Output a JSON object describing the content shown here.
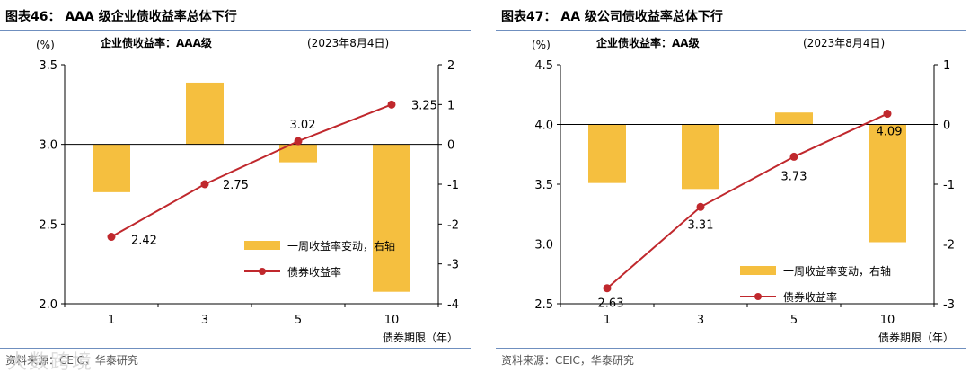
{
  "charts": [
    {
      "figure_title": "图表46：  AAA 级企业债收益率总体下行",
      "source": "资料来源：CEIC，华泰研究",
      "chart_data": {
        "type": "bar",
        "inner_title": "企业债收益率：AAA级",
        "date": "(2023年8月4日)",
        "left_unit": "(%)",
        "xlabel": "债券期限（年）",
        "categories": [
          "1",
          "3",
          "5",
          "10"
        ],
        "left_ylim": [
          2.0,
          3.5
        ],
        "left_ticks": [
          "2.0",
          "2.5",
          "3.0",
          "3.5"
        ],
        "right_ylim": [
          -4,
          2
        ],
        "right_ticks": [
          "-4",
          "-3",
          "-2",
          "-1",
          "0",
          "1",
          "2"
        ],
        "series": [
          {
            "name": "一周收益率变动，右轴",
            "axis": "right",
            "kind": "bar",
            "color": "#f5bf3f",
            "values": [
              -1.2,
              1.55,
              -0.45,
              -3.7
            ]
          },
          {
            "name": "债券收益率",
            "axis": "left",
            "kind": "line",
            "color": "#c0282d",
            "values": [
              2.42,
              2.75,
              3.02,
              3.25
            ],
            "labels": [
              "2.42",
              "2.75",
              "3.02",
              "3.25"
            ]
          }
        ],
        "legend_position": "bottom-right"
      }
    },
    {
      "figure_title": "图表47：  AA 级公司债收益率总体下行",
      "source": "资料来源：CEIC，华泰研究",
      "chart_data": {
        "type": "bar",
        "inner_title": "企业债收益率：AA级",
        "date": "(2023年8月4日)",
        "left_unit": "(%)",
        "xlabel": "债券期限（年）",
        "categories": [
          "1",
          "3",
          "5",
          "10"
        ],
        "left_ylim": [
          2.5,
          4.5
        ],
        "left_ticks": [
          "2.5",
          "3.0",
          "3.5",
          "4.0",
          "4.5"
        ],
        "right_ylim": [
          -3,
          1
        ],
        "right_ticks": [
          "-3",
          "-2",
          "-1",
          "0",
          "1"
        ],
        "series": [
          {
            "name": "一周收益率变动，右轴",
            "axis": "right",
            "kind": "bar",
            "color": "#f5bf3f",
            "values": [
              -0.98,
              -1.08,
              0.2,
              -1.97
            ]
          },
          {
            "name": "债券收益率",
            "axis": "left",
            "kind": "line",
            "color": "#c0282d",
            "values": [
              2.63,
              3.31,
              3.73,
              4.09
            ],
            "labels": [
              "2.63",
              "3.31",
              "3.73",
              "4.09"
            ]
          }
        ],
        "legend_position": "bottom-right"
      }
    }
  ],
  "watermark": "大数跨境"
}
